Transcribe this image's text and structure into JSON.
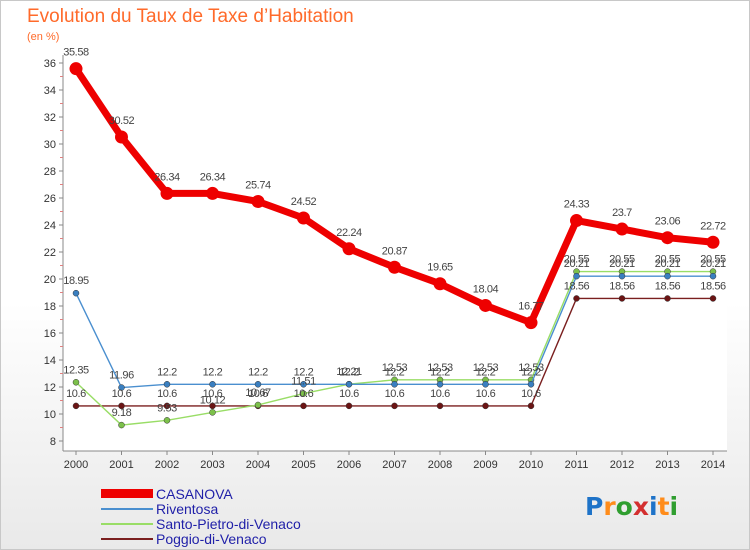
{
  "title": "Evolution du Taux de Taxe d’Habitation",
  "unit": "(en %)",
  "logo": {
    "text": "Proxiti",
    "colors": [
      "#1e73c8",
      "#ff8c1a",
      "#2f9e2f",
      "#d32f2f",
      "#1e73c8",
      "#ff8c1a",
      "#2f9e2f"
    ]
  },
  "chart_data": {
    "type": "line",
    "x": [
      "2000",
      "2001",
      "2002",
      "2003",
      "2004",
      "2005",
      "2006",
      "2007",
      "2008",
      "2009",
      "2010",
      "2011",
      "2012",
      "2013",
      "2014"
    ],
    "ylim": [
      8,
      36
    ],
    "yticks": [
      8,
      10,
      12,
      14,
      16,
      18,
      20,
      22,
      24,
      26,
      28,
      30,
      32,
      34,
      36
    ],
    "grid": false,
    "legend_position": "bottom-left",
    "series": [
      {
        "name": "CASANOVA",
        "color": "#ee0000",
        "values": [
          35.58,
          30.52,
          26.34,
          26.34,
          25.74,
          24.52,
          22.24,
          20.87,
          19.65,
          18.04,
          16.77,
          24.33,
          23.7,
          23.06,
          22.72
        ],
        "labels": [
          "35.58",
          "30.52",
          "26.34",
          "26.34",
          "25.74",
          "24.52",
          "22.24",
          "20.87",
          "19.65",
          "18.04",
          "16.77",
          "24.33",
          "23.7",
          "23.06",
          "22.72"
        ]
      },
      {
        "name": "Riventosa",
        "color": "#4a8fcf",
        "values": [
          18.95,
          11.96,
          12.2,
          12.2,
          12.2,
          12.2,
          12.2,
          12.2,
          12.2,
          12.2,
          12.2,
          20.21,
          20.21,
          20.21,
          20.21
        ],
        "labels": [
          "18.95",
          "11.96",
          "12.2",
          "12.2",
          "12.2",
          "12.2",
          "12.2",
          "12.2",
          "12.2",
          "12.2",
          "12.2",
          "20.21",
          "20.21",
          "20.21",
          "20.21"
        ]
      },
      {
        "name": "Santo-Pietro-di-Venaco",
        "color": "#99dd66",
        "values": [
          12.35,
          9.18,
          9.53,
          10.12,
          10.67,
          11.51,
          12.21,
          12.53,
          12.53,
          12.53,
          12.53,
          20.55,
          20.55,
          20.55,
          20.55
        ],
        "labels": [
          "12.35",
          "9.18",
          "9.53",
          "10.12",
          "10.67",
          "11.51",
          "12.21",
          "12.53",
          "12.53",
          "12.53",
          "12.53",
          "20.55",
          "20.55",
          "20.55",
          "20.55"
        ]
      },
      {
        "name": "Poggio-di-Venaco",
        "color": "#7a1f1f",
        "values": [
          10.6,
          10.6,
          10.6,
          10.6,
          10.6,
          10.6,
          10.6,
          10.6,
          10.6,
          10.6,
          10.6,
          18.56,
          18.56,
          18.56,
          18.56
        ],
        "labels": [
          "10.6",
          "10.6",
          "10.6",
          "10.6",
          "10.6",
          "10.6",
          "10.6",
          "10.6",
          "10.6",
          "10.6",
          "10.6",
          "18.56",
          "18.56",
          "18.56",
          "18.56"
        ]
      }
    ]
  }
}
